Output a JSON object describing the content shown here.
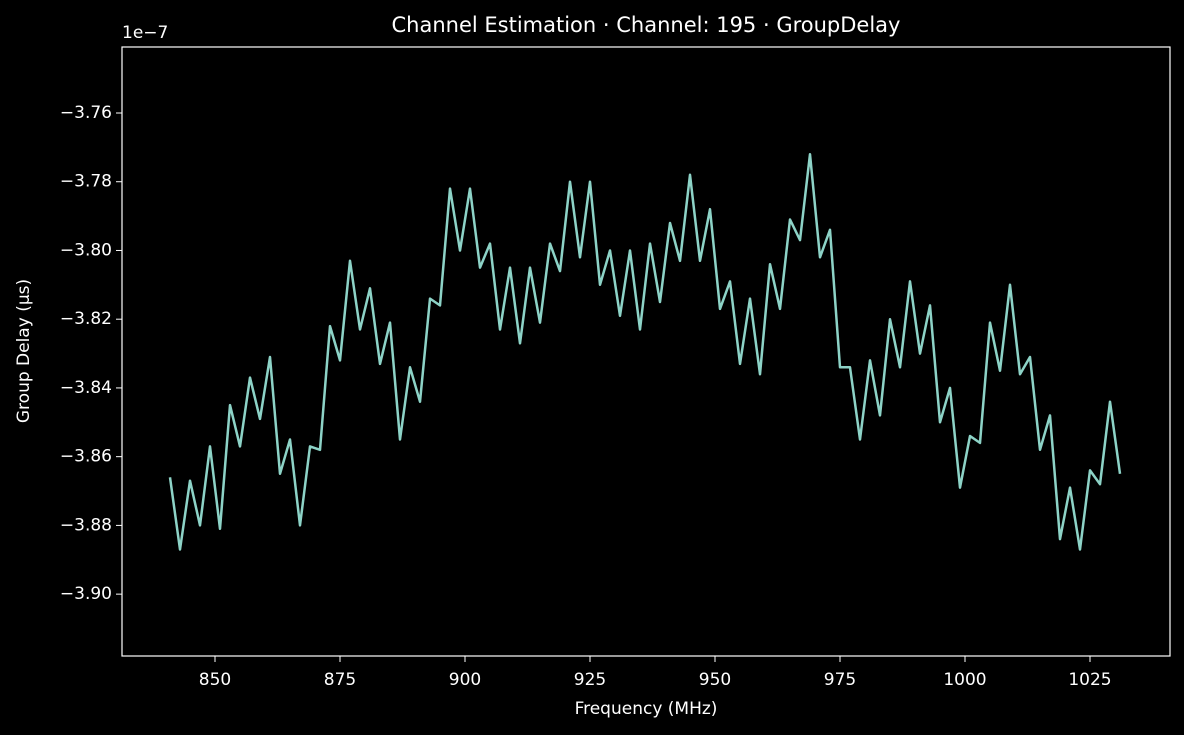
{
  "chart_data": {
    "type": "line",
    "title": "Channel Estimation · Channel: 195 · GroupDelay",
    "xlabel": "Frequency (MHz)",
    "ylabel": "Group Delay (µs)",
    "y_offset_label": "1e−7",
    "color": "#8dd3c7",
    "x": [
      841,
      843,
      845,
      847,
      849,
      851,
      853,
      855,
      857,
      859,
      861,
      863,
      865,
      867,
      869,
      871,
      873,
      875,
      877,
      879,
      881,
      883,
      885,
      887,
      889,
      891,
      893,
      895,
      897,
      899,
      901,
      903,
      905,
      907,
      909,
      911,
      913,
      915,
      917,
      919,
      921,
      923,
      925,
      927,
      929,
      931,
      933,
      935,
      937,
      939,
      941,
      943,
      945,
      947,
      949,
      951,
      953,
      955,
      957,
      959,
      961,
      963,
      965,
      967,
      969,
      971,
      973,
      975,
      977,
      979,
      981,
      983,
      985,
      987,
      989,
      991,
      993,
      995,
      997,
      999,
      1001,
      1003,
      1005,
      1007,
      1009,
      1011,
      1013,
      1015,
      1017,
      1019,
      1021,
      1023,
      1025,
      1027,
      1029,
      1031
    ],
    "values": [
      -3.866,
      -3.887,
      -3.867,
      -3.88,
      -3.857,
      -3.881,
      -3.845,
      -3.857,
      -3.837,
      -3.849,
      -3.831,
      -3.865,
      -3.855,
      -3.88,
      -3.857,
      -3.858,
      -3.822,
      -3.832,
      -3.803,
      -3.823,
      -3.811,
      -3.833,
      -3.821,
      -3.855,
      -3.834,
      -3.844,
      -3.814,
      -3.816,
      -3.782,
      -3.8,
      -3.782,
      -3.805,
      -3.798,
      -3.823,
      -3.805,
      -3.827,
      -3.805,
      -3.821,
      -3.798,
      -3.806,
      -3.78,
      -3.802,
      -3.78,
      -3.81,
      -3.8,
      -3.819,
      -3.8,
      -3.823,
      -3.798,
      -3.815,
      -3.792,
      -3.803,
      -3.778,
      -3.803,
      -3.788,
      -3.817,
      -3.809,
      -3.833,
      -3.814,
      -3.836,
      -3.804,
      -3.817,
      -3.791,
      -3.797,
      -3.772,
      -3.802,
      -3.794,
      -3.834,
      -3.834,
      -3.855,
      -3.832,
      -3.848,
      -3.82,
      -3.834,
      -3.809,
      -3.83,
      -3.816,
      -3.85,
      -3.84,
      -3.869,
      -3.854,
      -3.856,
      -3.821,
      -3.835,
      -3.81,
      -3.836,
      -3.831,
      -3.858,
      -3.848,
      -3.884,
      -3.869,
      -3.887,
      -3.864,
      -3.868,
      -3.844,
      -3.865
    ],
    "xlim": [
      831.4,
      1041
    ],
    "ylim": [
      -3.918,
      -3.7408
    ],
    "xticks": [
      850,
      875,
      900,
      925,
      950,
      975,
      1000,
      1025
    ],
    "yticks": [
      {
        "value": -3.9,
        "label": "−3.90"
      },
      {
        "value": -3.88,
        "label": "−3.88"
      },
      {
        "value": -3.86,
        "label": "−3.86"
      },
      {
        "value": -3.84,
        "label": "−3.84"
      },
      {
        "value": -3.82,
        "label": "−3.82"
      },
      {
        "value": -3.8,
        "label": "−3.80"
      },
      {
        "value": -3.78,
        "label": "−3.78"
      },
      {
        "value": -3.76,
        "label": "−3.76"
      }
    ]
  }
}
